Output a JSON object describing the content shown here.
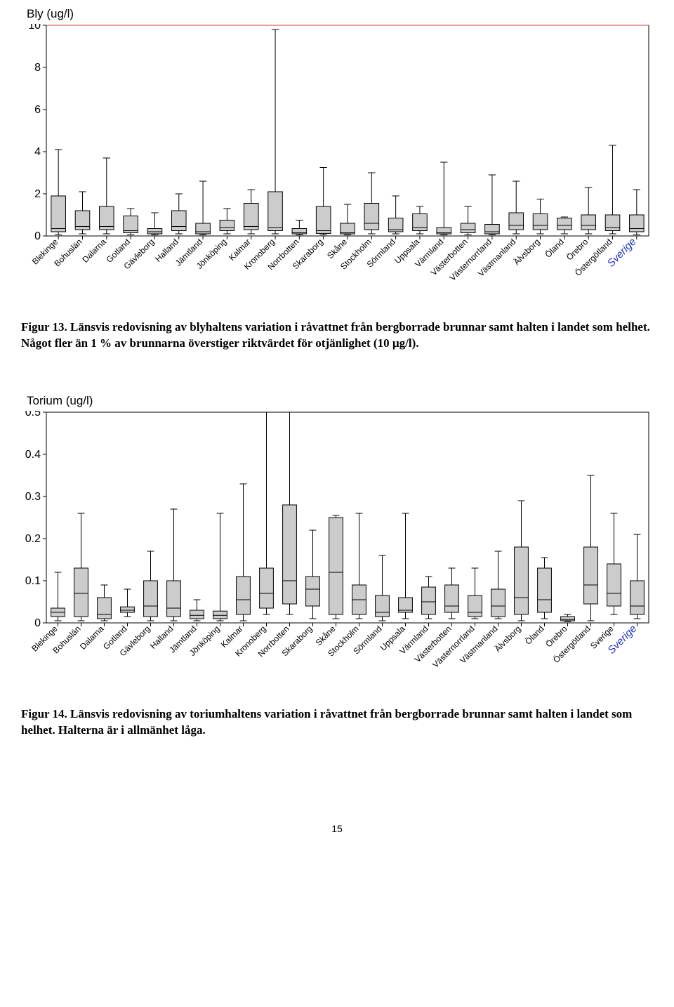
{
  "page_number": "15",
  "chart1": {
    "type": "boxplot",
    "title": "Bly (ug/l)",
    "y_axis": {
      "min": 0,
      "max": 10,
      "ticks": [
        0,
        2,
        4,
        6,
        8,
        10
      ],
      "fontsize": 16
    },
    "plot_bg": "#ffffff",
    "border_color": "#000000",
    "box_fill": "#cccccc",
    "box_stroke": "#000000",
    "whisker_stroke": "#000000",
    "reference_line": {
      "value": 10,
      "color": "#d04030",
      "width": 1
    },
    "label_fontsize": 12,
    "label_color_default": "#000000",
    "label_color_highlight": "#2030c0",
    "categories": [
      {
        "label": "Blekinge",
        "min": 0.05,
        "q1": 0.2,
        "median": 0.35,
        "q3": 1.9,
        "max": 4.1
      },
      {
        "label": "Bohuslän",
        "min": 0.1,
        "q1": 0.3,
        "median": 0.45,
        "q3": 1.2,
        "max": 2.1
      },
      {
        "label": "Dalarna",
        "min": 0.1,
        "q1": 0.3,
        "median": 0.45,
        "q3": 1.4,
        "max": 3.7
      },
      {
        "label": "Gotland",
        "min": 0.05,
        "q1": 0.15,
        "median": 0.25,
        "q3": 0.95,
        "max": 1.3
      },
      {
        "label": "Gävleborg",
        "min": 0.05,
        "q1": 0.1,
        "median": 0.2,
        "q3": 0.35,
        "max": 1.1
      },
      {
        "label": "Halland",
        "min": 0.1,
        "q1": 0.25,
        "median": 0.45,
        "q3": 1.2,
        "max": 2.0
      },
      {
        "label": "Jämtland",
        "min": 0.05,
        "q1": 0.1,
        "median": 0.2,
        "q3": 0.6,
        "max": 2.6
      },
      {
        "label": "Jönköping",
        "min": 0.1,
        "q1": 0.25,
        "median": 0.4,
        "q3": 0.75,
        "max": 1.3
      },
      {
        "label": "Kalmar",
        "min": 0.1,
        "q1": 0.3,
        "median": 0.45,
        "q3": 1.55,
        "max": 2.2
      },
      {
        "label": "Kronoberg",
        "min": 0.1,
        "q1": 0.25,
        "median": 0.4,
        "q3": 2.1,
        "max": 9.8
      },
      {
        "label": "Norrbotten",
        "min": 0.05,
        "q1": 0.1,
        "median": 0.15,
        "q3": 0.35,
        "max": 0.75
      },
      {
        "label": "Skaraborg",
        "min": 0.05,
        "q1": 0.12,
        "median": 0.25,
        "q3": 1.4,
        "max": 3.25
      },
      {
        "label": "Skåne",
        "min": 0.05,
        "q1": 0.1,
        "median": 0.15,
        "q3": 0.6,
        "max": 1.5
      },
      {
        "label": "Stockholm",
        "min": 0.1,
        "q1": 0.3,
        "median": 0.6,
        "q3": 1.55,
        "max": 3.0
      },
      {
        "label": "Sörmland",
        "min": 0.1,
        "q1": 0.2,
        "median": 0.3,
        "q3": 0.85,
        "max": 1.9
      },
      {
        "label": "Uppsala",
        "min": 0.1,
        "q1": 0.25,
        "median": 0.4,
        "q3": 1.05,
        "max": 1.4
      },
      {
        "label": "Värmland",
        "min": 0.05,
        "q1": 0.1,
        "median": 0.15,
        "q3": 0.4,
        "max": 3.5
      },
      {
        "label": "Västerbotten",
        "min": 0.05,
        "q1": 0.15,
        "median": 0.3,
        "q3": 0.6,
        "max": 1.4
      },
      {
        "label": "Västernorrland",
        "min": 0.05,
        "q1": 0.1,
        "median": 0.2,
        "q3": 0.55,
        "max": 2.9
      },
      {
        "label": "Västmanland",
        "min": 0.1,
        "q1": 0.3,
        "median": 0.5,
        "q3": 1.1,
        "max": 2.6
      },
      {
        "label": "Älvsborg",
        "min": 0.1,
        "q1": 0.3,
        "median": 0.5,
        "q3": 1.05,
        "max": 1.75
      },
      {
        "label": "Öland",
        "min": 0.1,
        "q1": 0.3,
        "median": 0.5,
        "q3": 0.85,
        "max": 0.9
      },
      {
        "label": "Örebro",
        "min": 0.1,
        "q1": 0.3,
        "median": 0.5,
        "q3": 1.0,
        "max": 2.3
      },
      {
        "label": "Östergötland",
        "min": 0.1,
        "q1": 0.25,
        "median": 0.4,
        "q3": 1.0,
        "max": 4.3
      },
      {
        "label": "Sverige",
        "min": 0.05,
        "q1": 0.2,
        "median": 0.35,
        "q3": 1.0,
        "max": 2.2,
        "highlight": true
      }
    ]
  },
  "caption1": "Figur 13. Länsvis redovisning av blyhaltens variation i råvattnet från bergborrade brunnar samt halten i landet som helhet. Något fler än 1 % av brunnarna överstiger riktvärdet för otjänlighet (10 µg/l).",
  "chart2": {
    "type": "boxplot",
    "title": "Torium (ug/l)",
    "y_axis": {
      "min": 0.0,
      "max": 0.5,
      "ticks": [
        0.0,
        0.1,
        0.2,
        0.3,
        0.4,
        0.5
      ],
      "fontsize": 16
    },
    "plot_bg": "#ffffff",
    "border_color": "#000000",
    "box_fill": "#cccccc",
    "box_stroke": "#000000",
    "whisker_stroke": "#000000",
    "label_fontsize": 12,
    "label_color_default": "#000000",
    "label_color_highlight": "#2030c0",
    "categories": [
      {
        "label": "Blekinge",
        "min": 0.005,
        "q1": 0.015,
        "median": 0.025,
        "q3": 0.035,
        "max": 0.12
      },
      {
        "label": "Bohuslän",
        "min": 0.005,
        "q1": 0.015,
        "median": 0.07,
        "q3": 0.13,
        "max": 0.26
      },
      {
        "label": "Dalarna",
        "min": 0.005,
        "q1": 0.01,
        "median": 0.02,
        "q3": 0.06,
        "max": 0.09
      },
      {
        "label": "Gotland",
        "min": 0.015,
        "q1": 0.025,
        "median": 0.03,
        "q3": 0.038,
        "max": 0.08
      },
      {
        "label": "Gävleborg",
        "min": 0.005,
        "q1": 0.015,
        "median": 0.04,
        "q3": 0.1,
        "max": 0.17
      },
      {
        "label": "Halland",
        "min": 0.005,
        "q1": 0.015,
        "median": 0.035,
        "q3": 0.1,
        "max": 0.27
      },
      {
        "label": "Jämtland",
        "min": 0.005,
        "q1": 0.01,
        "median": 0.018,
        "q3": 0.03,
        "max": 0.055
      },
      {
        "label": "Jönköping",
        "min": 0.005,
        "q1": 0.01,
        "median": 0.018,
        "q3": 0.028,
        "max": 0.26
      },
      {
        "label": "Kalmar",
        "min": 0.005,
        "q1": 0.02,
        "median": 0.055,
        "q3": 0.11,
        "max": 0.33
      },
      {
        "label": "Kronoberg",
        "min": 0.02,
        "q1": 0.035,
        "median": 0.07,
        "q3": 0.13,
        "max": 0.5
      },
      {
        "label": "Norrbotten",
        "min": 0.02,
        "q1": 0.045,
        "median": 0.1,
        "q3": 0.28,
        "max": 0.5
      },
      {
        "label": "Skaraborg",
        "min": 0.01,
        "q1": 0.04,
        "median": 0.08,
        "q3": 0.11,
        "max": 0.22
      },
      {
        "label": "Skåne",
        "min": 0.01,
        "q1": 0.02,
        "median": 0.12,
        "q3": 0.25,
        "max": 0.255
      },
      {
        "label": "Stockholm",
        "min": 0.01,
        "q1": 0.02,
        "median": 0.055,
        "q3": 0.09,
        "max": 0.26
      },
      {
        "label": "Sörmland",
        "min": 0.005,
        "q1": 0.015,
        "median": 0.025,
        "q3": 0.065,
        "max": 0.16
      },
      {
        "label": "Uppsala",
        "min": 0.01,
        "q1": 0.025,
        "median": 0.03,
        "q3": 0.06,
        "max": 0.26
      },
      {
        "label": "Värmland",
        "min": 0.01,
        "q1": 0.02,
        "median": 0.05,
        "q3": 0.085,
        "max": 0.11
      },
      {
        "label": "Västerbotten",
        "min": 0.01,
        "q1": 0.025,
        "median": 0.04,
        "q3": 0.09,
        "max": 0.13
      },
      {
        "label": "Västernorrland",
        "min": 0.01,
        "q1": 0.015,
        "median": 0.025,
        "q3": 0.065,
        "max": 0.13
      },
      {
        "label": "Västmanland",
        "min": 0.01,
        "q1": 0.015,
        "median": 0.04,
        "q3": 0.08,
        "max": 0.17
      },
      {
        "label": "Älvsborg",
        "min": 0.005,
        "q1": 0.02,
        "median": 0.06,
        "q3": 0.18,
        "max": 0.29
      },
      {
        "label": "Öland",
        "min": 0.01,
        "q1": 0.025,
        "median": 0.055,
        "q3": 0.13,
        "max": 0.155
      },
      {
        "label": "Örebro",
        "min": 0.003,
        "q1": 0.005,
        "median": 0.008,
        "q3": 0.015,
        "max": 0.02
      },
      {
        "label": "Östergötland",
        "min": 0.005,
        "q1": 0.045,
        "median": 0.09,
        "q3": 0.18,
        "max": 0.35
      },
      {
        "label": "Sverige",
        "min": 0.02,
        "q1": 0.04,
        "median": 0.07,
        "q3": 0.14,
        "max": 0.26
      },
      {
        "label": "Sverige",
        "min": 0.01,
        "q1": 0.02,
        "median": 0.04,
        "q3": 0.1,
        "max": 0.21,
        "highlight": true
      }
    ]
  },
  "caption2": "Figur 14. Länsvis redovisning av toriumhaltens variation i råvattnet från bergborrade brunnar samt halten i landet som helhet. Halterna är i allmänhet låga."
}
